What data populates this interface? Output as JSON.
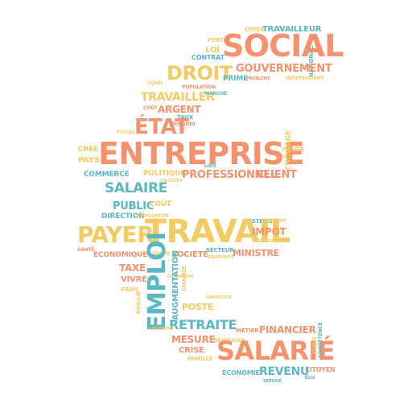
{
  "colors": {
    "salmon": "#f4926b",
    "gold": "#f2cc62",
    "teal": "#5ab8c4"
  },
  "words": {
    "social": "SOCIAL",
    "travailleur": "TRAVAILLEUR",
    "loyer": "LOYER",
    "national": "NATIONAL",
    "perte": "PERTE",
    "loi": "LOI",
    "contrat": "CONTRAT",
    "gouvernement": "GOUVERNEMENT",
    "droit": "DROIT",
    "prime": "PRIME",
    "probleme": "PROBLÈME",
    "independant": "INDÉPENDANT",
    "population": "POPULATION",
    "travailler": "TRAVAILLER",
    "argent": "ARGENT",
    "marche": "MARCHÉ",
    "cout_small": "COÛT",
    "taux": "TAUX",
    "etat": "ÉTAT",
    "pension": "PENSION",
    "fiscal": "FISCAL",
    "entreprise": "ENTREPRISE",
    "cree": "CRÉÉ",
    "pays": "PAYS",
    "priver": "PRIVER",
    "chomage": "CHÔMAGE",
    "commerce": "COMMERCE",
    "politique": "POLITIQUE",
    "professionnel": "PROFESSIONNEL",
    "client": "CLIENT",
    "collectif": "COLLECTIF",
    "salaire": "SALAIRE",
    "public": "PUBLIC",
    "cout": "COÛT",
    "direction": "DIRECTION",
    "employeur": "EMPLOYEUR",
    "systeme": "SYSTÈME",
    "enfant": "ENFANT",
    "payer": "PAYER",
    "travail": "TRAVAIL",
    "impot": "IMPÔT",
    "association": "ASSOCIATION",
    "economique": "ÉCONOMIQUE",
    "retraite_small": "RETRAITE",
    "societe": "SOCIÉTÉ",
    "secteur": "SECTEUR",
    "ministre": "MINISTRE",
    "sante": "SANTÉ",
    "solidarite": "SOLIDARITÉ",
    "taxe": "TAXE",
    "emploi": "EMPLOI",
    "vivre": "VIVRE",
    "frais": "FRAIS",
    "formation": "FORMATION",
    "augmentation": "AUGMENTATION",
    "charge": "CHARGE",
    "banque": "BANQUE",
    "handicape": "HANDICAPÉ",
    "poste": "POSTE",
    "retraite": "RETRAITE",
    "metier": "MÉTIER",
    "financier": "FINANCIER",
    "logement": "LOGEMENT",
    "mesure": "MESURE",
    "crise": "CRISE",
    "beneficier": "BÉNÉFICIER",
    "salarie": "SALARIÉ",
    "famille": "FAMILLE",
    "revenu": "REVENU",
    "economie": "ÉCONOMIE",
    "citoyen": "CITOYEN",
    "elu": "ÉLU",
    "service": "SERVICE",
    "competence": "COMPÉTENCE",
    "euro": "EURO",
    "lieu": "LIEU",
    "cond": "COND"
  }
}
